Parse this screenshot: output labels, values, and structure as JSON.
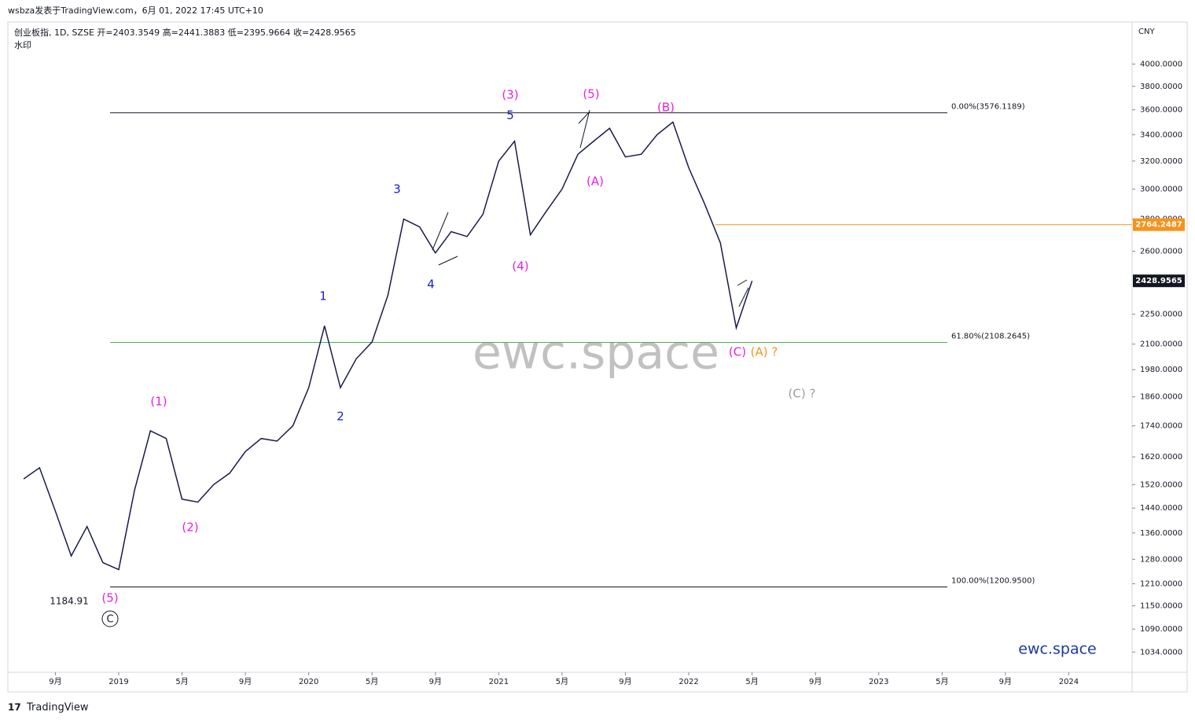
{
  "header": {
    "published": "wsbza发表于TradingView.com，6月 01, 2022 17:45 UTC+10",
    "legend": "创业板指, 1D, SZSE  开=2403.3549  高=2441.3883  低=2395.9664  收=2428.9565",
    "watermark_label": "水印",
    "currency": "CNY",
    "watermark": "ewc.space",
    "brand": "ewc.space",
    "footer": "TradingView"
  },
  "chart_data": {
    "type": "line",
    "log_scale": true,
    "color": "#1a1a4e",
    "x": [
      "2018-07",
      "2018-08",
      "2018-09",
      "2018-10",
      "2018-11",
      "2018-12",
      "2019-01",
      "2019-02",
      "2019-03",
      "2019-04",
      "2019-05",
      "2019-06",
      "2019-07",
      "2019-08",
      "2019-09",
      "2019-10",
      "2019-11",
      "2019-12",
      "2020-01",
      "2020-02",
      "2020-03",
      "2020-04",
      "2020-05",
      "2020-06",
      "2020-07",
      "2020-08",
      "2020-09",
      "2020-10",
      "2020-11",
      "2020-12",
      "2021-01",
      "2021-02",
      "2021-03",
      "2021-04",
      "2021-05",
      "2021-06",
      "2021-07",
      "2021-08",
      "2021-09",
      "2021-10",
      "2021-11",
      "2021-12",
      "2022-01",
      "2022-02",
      "2022-03",
      "2022-04",
      "2022-05"
    ],
    "series": [
      {
        "name": "创业板指",
        "color": "#1a1a4e",
        "values": [
          1540,
          1580,
          1430,
          1290,
          1380,
          1270,
          1250,
          1500,
          1720,
          1690,
          1470,
          1460,
          1520,
          1560,
          1640,
          1690,
          1680,
          1740,
          1900,
          2190,
          1900,
          2030,
          2110,
          2350,
          2800,
          2750,
          2590,
          2720,
          2690,
          2830,
          3200,
          3350,
          2700,
          2850,
          3000,
          3250,
          3350,
          3450,
          3230,
          3250,
          3400,
          3500,
          3150,
          2900,
          2650,
          2180,
          2429
        ]
      }
    ],
    "xlim": [
      "2018-06",
      "2024-05"
    ],
    "xticks": [
      {
        "value": "2018-09",
        "label": "9月"
      },
      {
        "value": "2019-01",
        "label": "2019"
      },
      {
        "value": "2019-05",
        "label": "5月"
      },
      {
        "value": "2019-09",
        "label": "9月"
      },
      {
        "value": "2020-01",
        "label": "2020"
      },
      {
        "value": "2020-05",
        "label": "5月"
      },
      {
        "value": "2020-09",
        "label": "9月"
      },
      {
        "value": "2021-01",
        "label": "2021"
      },
      {
        "value": "2021-05",
        "label": "5月"
      },
      {
        "value": "2021-09",
        "label": "9月"
      },
      {
        "value": "2022-01",
        "label": "2022"
      },
      {
        "value": "2022-05",
        "label": "5月"
      },
      {
        "value": "2022-09",
        "label": "9月"
      },
      {
        "value": "2023-01",
        "label": "2023"
      },
      {
        "value": "2023-05",
        "label": "5月"
      },
      {
        "value": "2023-09",
        "label": "9月"
      },
      {
        "value": "2024-01",
        "label": "2024"
      }
    ],
    "ylim": [
      987,
      4406
    ],
    "yticks": [
      {
        "value": 4000,
        "label": "4000.0000"
      },
      {
        "value": 3800,
        "label": "3800.0000"
      },
      {
        "value": 3600,
        "label": "3600.0000"
      },
      {
        "value": 3400,
        "label": "3400.0000"
      },
      {
        "value": 3200,
        "label": "3200.0000"
      },
      {
        "value": 3000,
        "label": "3000.0000"
      },
      {
        "value": 2800,
        "label": "2800.0000"
      },
      {
        "value": 2600,
        "label": "2600.0000"
      },
      {
        "value": 2250,
        "label": "2250.0000"
      },
      {
        "value": 2100,
        "label": "2100.0000"
      },
      {
        "value": 1980,
        "label": "1980.0000"
      },
      {
        "value": 1860,
        "label": "1860.0000"
      },
      {
        "value": 1740,
        "label": "1740.0000"
      },
      {
        "value": 1620,
        "label": "1620.0000"
      },
      {
        "value": 1520,
        "label": "1520.0000"
      },
      {
        "value": 1440,
        "label": "1440.0000"
      },
      {
        "value": 1360,
        "label": "1360.0000"
      },
      {
        "value": 1280,
        "label": "1280.0000"
      },
      {
        "value": 1210,
        "label": "1210.0000"
      },
      {
        "value": 1150,
        "label": "1150.0000"
      },
      {
        "value": 1090,
        "label": "1090.0000"
      },
      {
        "value": 1034,
        "label": "1034.0000"
      }
    ],
    "levels": [
      {
        "value": 3576.1189,
        "label": "0.00%(3576.1189)",
        "color": "#131722"
      },
      {
        "value": 2108.2645,
        "label": "61.80%(2108.2645)",
        "color": "#4caf50"
      },
      {
        "value": 1200.95,
        "label": "100.00%(1200.9500)",
        "color": "#131722"
      }
    ],
    "markers": [
      {
        "value": 2764.2487,
        "label": "2764.2487",
        "color": "#f7931a"
      },
      {
        "value": 2428.9565,
        "label": "2428.9565",
        "color": "#131722"
      }
    ],
    "annotations": [
      {
        "text": "(5)",
        "color": "#e91ee3"
      },
      {
        "text": "C",
        "color": "#131722"
      },
      {
        "text": "1184.91",
        "color": "#131722"
      },
      {
        "text": "(1)",
        "color": "#e91ee3"
      },
      {
        "text": "(2)",
        "color": "#e91ee3"
      },
      {
        "text": "(3)",
        "color": "#e91ee3"
      },
      {
        "text": "(4)",
        "color": "#e91ee3"
      },
      {
        "text": "(5)",
        "color": "#e91ee3"
      },
      {
        "text": "(A)",
        "color": "#e91ee3"
      },
      {
        "text": "(B)",
        "color": "#e91ee3"
      },
      {
        "text": "(C)",
        "color": "#e91ee3"
      },
      {
        "text": "(A) ?",
        "color": "#f7931a"
      },
      {
        "text": "(C) ?",
        "color": "#9e9e9e"
      },
      {
        "text": "1",
        "color": "#1a1adb"
      },
      {
        "text": "2",
        "color": "#1a1adb"
      },
      {
        "text": "3",
        "color": "#1a1adb"
      },
      {
        "text": "4",
        "color": "#1a1adb"
      },
      {
        "text": "5",
        "color": "#1a1adb"
      }
    ]
  }
}
